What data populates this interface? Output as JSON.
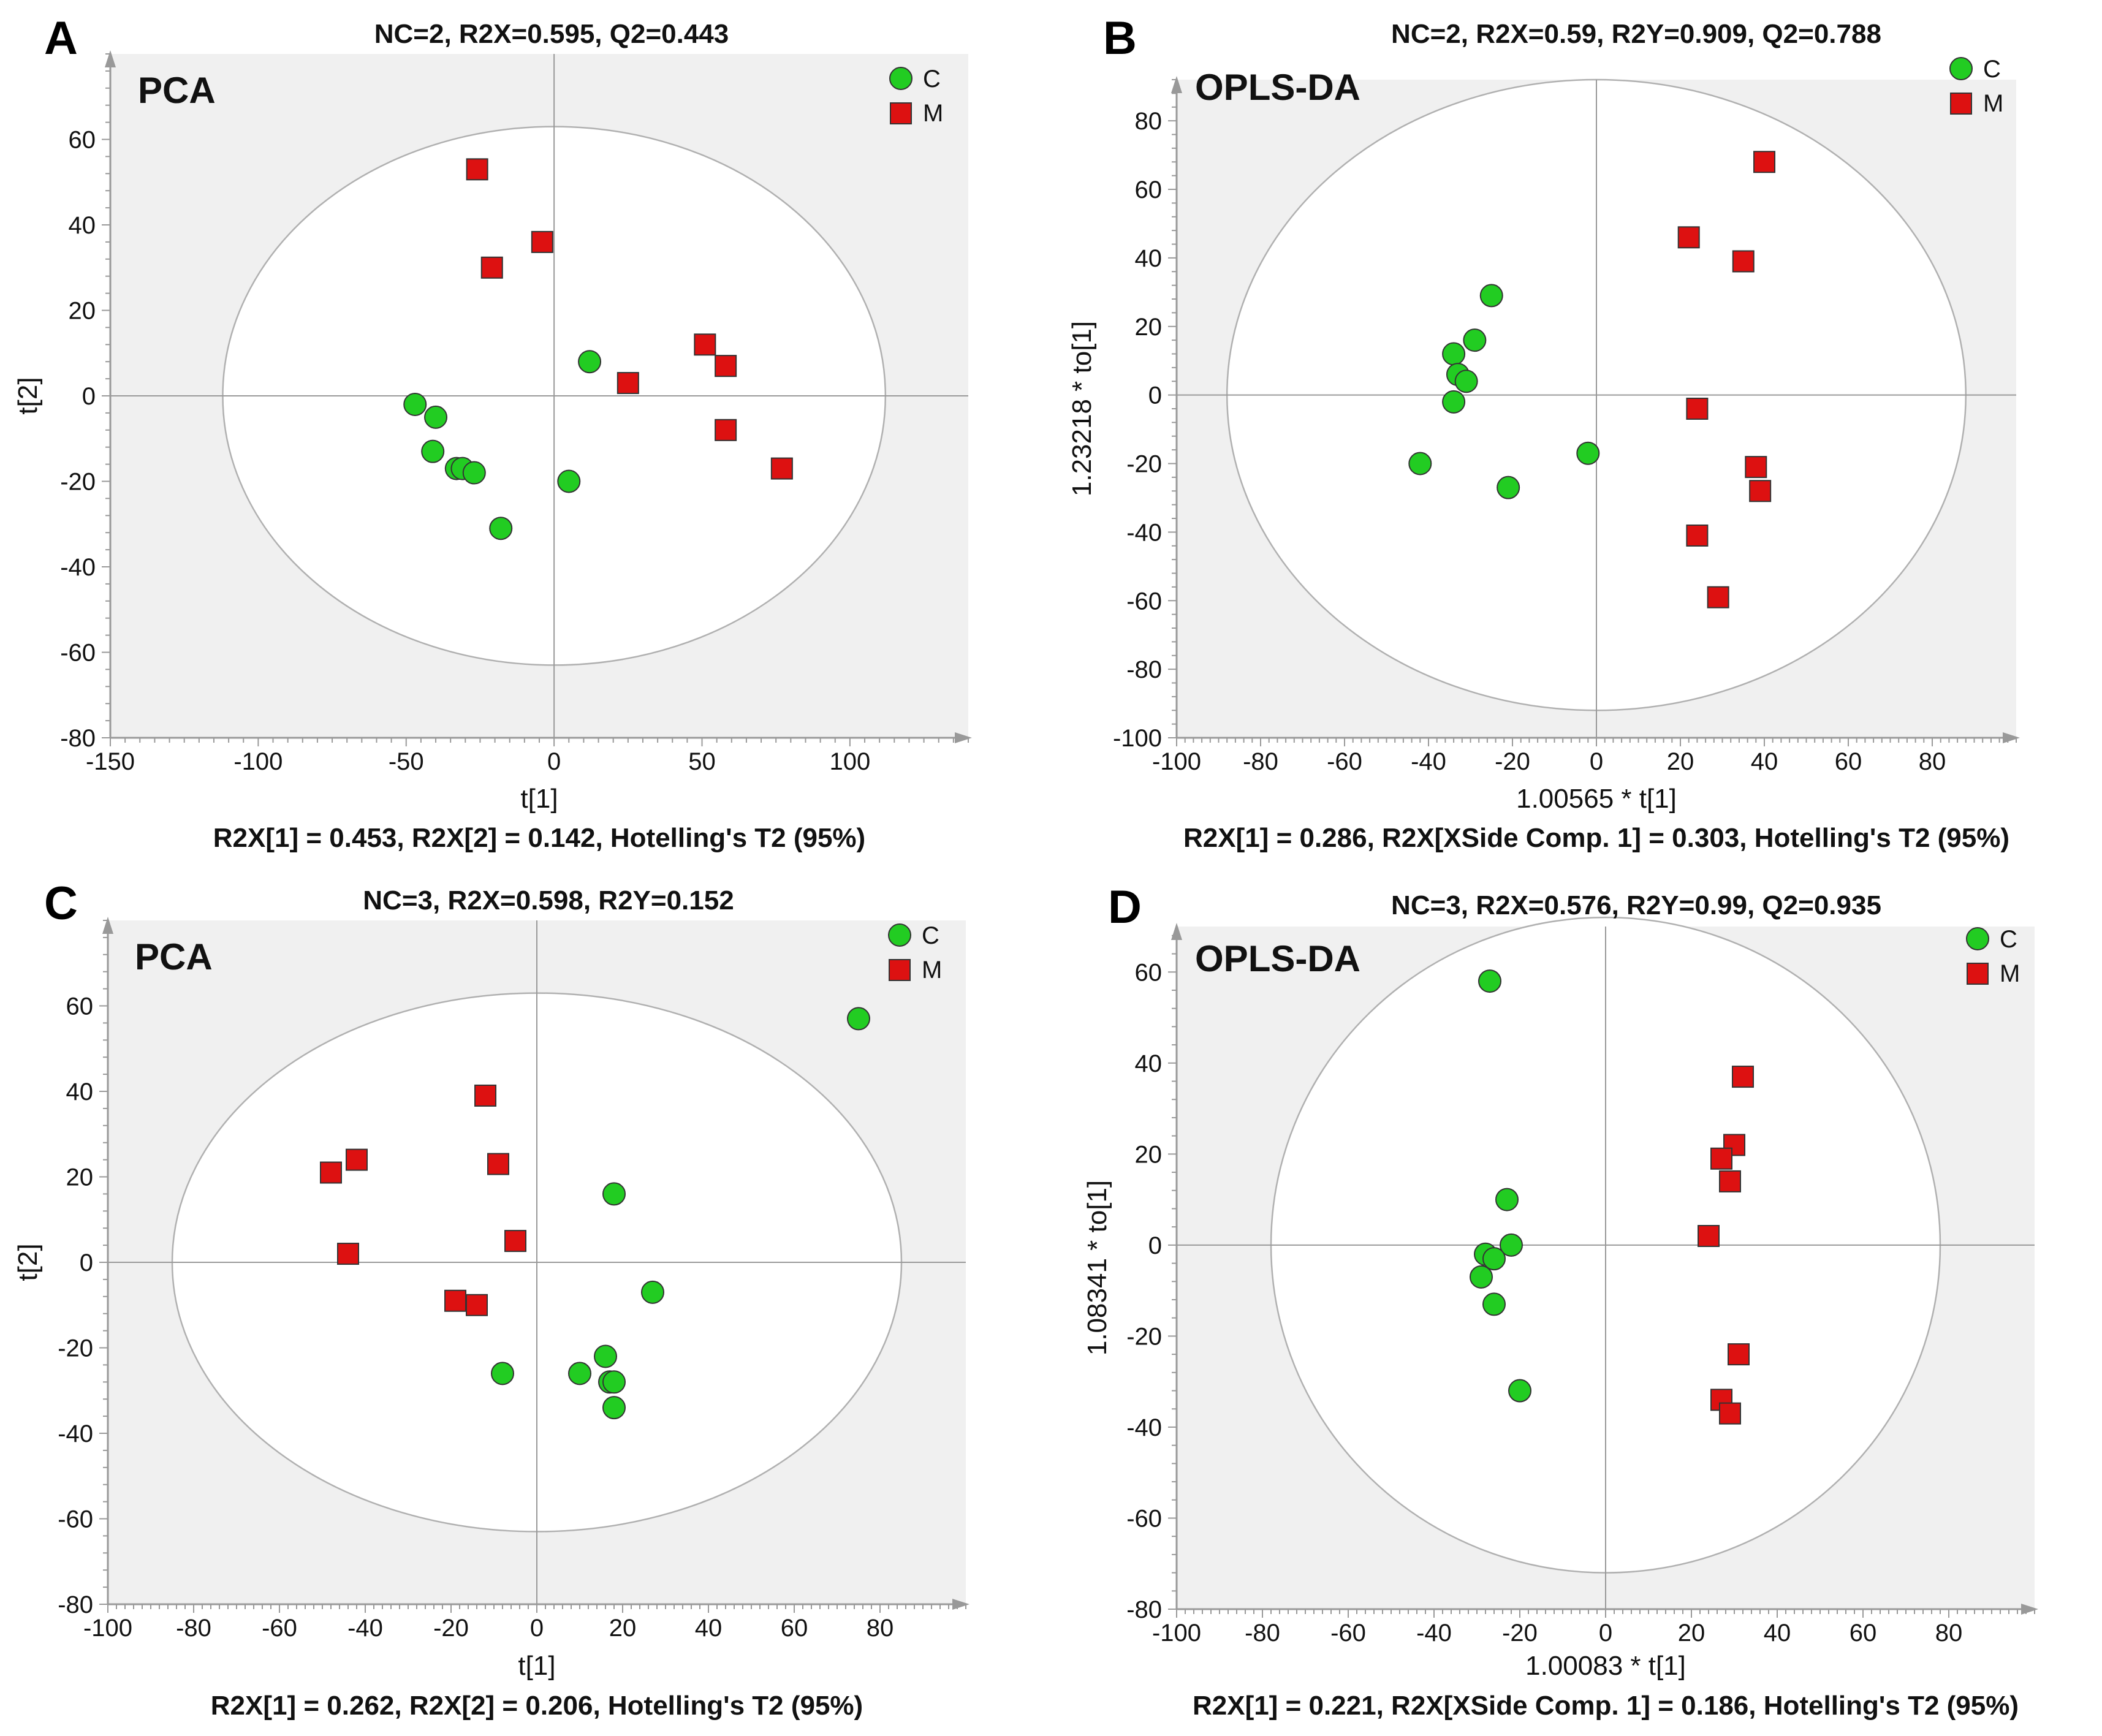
{
  "figure": {
    "panels": [
      {
        "letter": "A",
        "title": "NC=2, R2X=0.595, Q2=0.443",
        "method": "PCA",
        "xlabel": "t[1]",
        "ylabel": "t[2]",
        "caption": "R2X[1] = 0.453, R2X[2] = 0.142, Hotelling's T2 (95%)",
        "legend": {
          "c": "C",
          "m": "M"
        }
      },
      {
        "letter": "B",
        "title": "NC=2, R2X=0.59, R2Y=0.909, Q2=0.788",
        "method": "OPLS-DA",
        "xlabel": "1.00565 * t[1]",
        "ylabel": "1.23218 * to[1]",
        "caption": "R2X[1] = 0.286, R2X[XSide Comp. 1] = 0.303, Hotelling's T2 (95%)",
        "legend": {
          "c": "C",
          "m": "M"
        }
      },
      {
        "letter": "C",
        "title": "NC=3, R2X=0.598, R2Y=0.152",
        "method": "PCA",
        "xlabel": "t[1]",
        "ylabel": "t[2]",
        "caption": "R2X[1] = 0.262, R2X[2] = 0.206, Hotelling's T2 (95%)",
        "legend": {
          "c": "C",
          "m": "M"
        }
      },
      {
        "letter": "D",
        "title": "NC=3, R2X=0.576, R2Y=0.99, Q2=0.935",
        "method": "OPLS-DA",
        "xlabel": "1.00083 * t[1]",
        "ylabel": "1.08341 * to[1]",
        "caption": "R2X[1] = 0.221, R2X[XSide Comp. 1] = 0.186, Hotelling's T2 (95%)",
        "legend": {
          "c": "C",
          "m": "M"
        }
      }
    ]
  },
  "colors": {
    "group_c": "#22cc22",
    "group_m": "#dd1111",
    "plot_bg": "#f0f0f0",
    "ellipse_fill": "#ffffff",
    "axis": "#999999"
  },
  "chart_data": [
    {
      "type": "scatter",
      "panel": "A",
      "title": "NC=2, R2X=0.595, Q2=0.443",
      "xlabel": "t[1]",
      "ylabel": "t[2]",
      "xlim": [
        -150,
        140
      ],
      "ylim": [
        -80,
        80
      ],
      "xticks": [
        -150,
        -100,
        -50,
        0,
        50,
        100
      ],
      "yticks": [
        -80,
        -60,
        -40,
        -20,
        0,
        20,
        40,
        60
      ],
      "ellipse": {
        "rx": 112,
        "ry": 63
      },
      "series": [
        {
          "name": "C",
          "marker": "circle",
          "points": [
            [
              -47,
              -2
            ],
            [
              -40,
              -5
            ],
            [
              -41,
              -13
            ],
            [
              -33,
              -17
            ],
            [
              -31,
              -17
            ],
            [
              -27,
              -18
            ],
            [
              -18,
              -31
            ],
            [
              12,
              8
            ],
            [
              5,
              -20
            ]
          ]
        },
        {
          "name": "M",
          "marker": "square",
          "points": [
            [
              -26,
              53
            ],
            [
              -21,
              30
            ],
            [
              -4,
              36
            ],
            [
              25,
              3
            ],
            [
              51,
              12
            ],
            [
              58,
              7
            ],
            [
              58,
              -8
            ],
            [
              77,
              -17
            ]
          ]
        }
      ]
    },
    {
      "type": "scatter",
      "panel": "B",
      "title": "NC=2, R2X=0.59, R2Y=0.909, Q2=0.788",
      "xlabel": "1.00565 * t[1]",
      "ylabel": "1.23218 * to[1]",
      "xlim": [
        -100,
        100
      ],
      "ylim": [
        -100,
        92
      ],
      "xticks": [
        -100,
        -80,
        -60,
        -40,
        -20,
        0,
        20,
        40,
        60,
        80
      ],
      "yticks": [
        -100,
        -80,
        -60,
        -40,
        -20,
        0,
        20,
        40,
        60,
        80
      ],
      "ellipse": {
        "rx": 88,
        "ry": 92
      },
      "series": [
        {
          "name": "C",
          "marker": "circle",
          "points": [
            [
              -25,
              29
            ],
            [
              -29,
              16
            ],
            [
              -34,
              12
            ],
            [
              -33,
              6
            ],
            [
              -31,
              4
            ],
            [
              -34,
              -2
            ],
            [
              -42,
              -20
            ],
            [
              -21,
              -27
            ],
            [
              -2,
              -17
            ]
          ]
        },
        {
          "name": "M",
          "marker": "square",
          "points": [
            [
              40,
              68
            ],
            [
              22,
              46
            ],
            [
              35,
              39
            ],
            [
              24,
              -4
            ],
            [
              38,
              -21
            ],
            [
              39,
              -28
            ],
            [
              24,
              -41
            ],
            [
              29,
              -59
            ]
          ]
        }
      ]
    },
    {
      "type": "scatter",
      "panel": "C",
      "title": "NC=3, R2X=0.598, R2Y=0.152",
      "xlabel": "t[1]",
      "ylabel": "t[2]",
      "xlim": [
        -100,
        100
      ],
      "ylim": [
        -80,
        80
      ],
      "xticks": [
        -100,
        -80,
        -60,
        -40,
        -20,
        0,
        20,
        40,
        60,
        80
      ],
      "yticks": [
        -80,
        -60,
        -40,
        -20,
        0,
        20,
        40,
        60
      ],
      "ellipse": {
        "rx": 85,
        "ry": 63
      },
      "series": [
        {
          "name": "C",
          "marker": "circle",
          "points": [
            [
              75,
              57
            ],
            [
              18,
              16
            ],
            [
              27,
              -7
            ],
            [
              16,
              -22
            ],
            [
              17,
              -28
            ],
            [
              18,
              -28
            ],
            [
              18,
              -34
            ],
            [
              10,
              -26
            ],
            [
              -8,
              -26
            ]
          ]
        },
        {
          "name": "M",
          "marker": "square",
          "points": [
            [
              -12,
              39
            ],
            [
              -48,
              21
            ],
            [
              -42,
              24
            ],
            [
              -9,
              23
            ],
            [
              -5,
              5
            ],
            [
              -44,
              2
            ],
            [
              -19,
              -9
            ],
            [
              -14,
              -10
            ]
          ]
        }
      ]
    },
    {
      "type": "scatter",
      "panel": "D",
      "title": "NC=3, R2X=0.576, R2Y=0.99, Q2=0.935",
      "xlabel": "1.00083 * t[1]",
      "ylabel": "1.08341 * to[1]",
      "xlim": [
        -100,
        100
      ],
      "ylim": [
        -80,
        70
      ],
      "xticks": [
        -100,
        -80,
        -60,
        -40,
        -20,
        0,
        20,
        40,
        60,
        80
      ],
      "yticks": [
        -80,
        -60,
        -40,
        -20,
        0,
        20,
        40,
        60
      ],
      "ellipse": {
        "rx": 78,
        "ry": 72
      },
      "series": [
        {
          "name": "C",
          "marker": "circle",
          "points": [
            [
              -27,
              58
            ],
            [
              -23,
              10
            ],
            [
              -22,
              0
            ],
            [
              -28,
              -2
            ],
            [
              -26,
              -3
            ],
            [
              -29,
              -7
            ],
            [
              -26,
              -13
            ],
            [
              -20,
              -32
            ]
          ]
        },
        {
          "name": "M",
          "marker": "square",
          "points": [
            [
              32,
              37
            ],
            [
              30,
              22
            ],
            [
              27,
              19
            ],
            [
              29,
              14
            ],
            [
              24,
              2
            ],
            [
              31,
              -24
            ],
            [
              27,
              -34
            ],
            [
              29,
              -37
            ]
          ]
        }
      ]
    }
  ]
}
